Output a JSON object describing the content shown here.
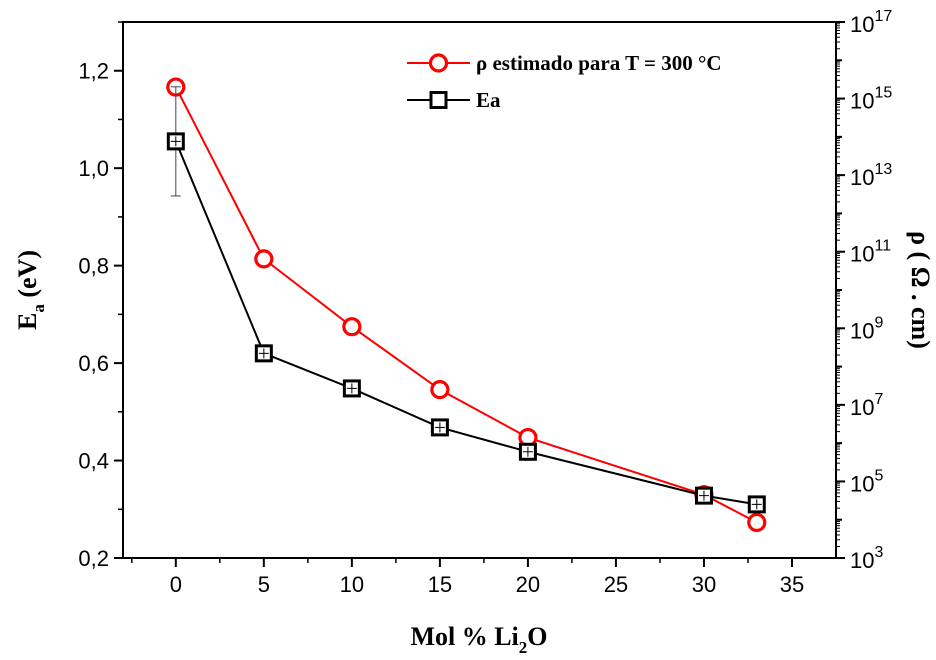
{
  "chart_data": {
    "type": "line",
    "x": [
      0,
      5,
      10,
      15,
      20,
      30,
      33
    ],
    "xlabel": {
      "main": "Mol % Li",
      "sub": "2",
      "tail": "O"
    },
    "ylabel_left": {
      "main": "E",
      "sub": "a",
      "tail": " (eV)"
    },
    "ylabel_right": "ρ ( Ω . cm)",
    "xlim": [
      -3,
      37.5
    ],
    "xticks": [
      0,
      5,
      10,
      15,
      20,
      25,
      30,
      35
    ],
    "ylim_left": [
      0.2,
      1.3
    ],
    "yticks_left": [
      "0,2",
      "0,4",
      "0,6",
      "0,8",
      "1,0",
      "1,2"
    ],
    "yticks_left_values": [
      0.2,
      0.4,
      0.6,
      0.8,
      1.0,
      1.2
    ],
    "right_axis_scale": "log",
    "ylim_right_exp": [
      3,
      17
    ],
    "yticks_right_exp": [
      "3",
      "5",
      "7",
      "9",
      "11",
      "13",
      "15",
      "17"
    ],
    "yticks_right_base": "10",
    "series": [
      {
        "name": "ρ estimado para T = 300 °C",
        "axis": "right",
        "marker": "circle",
        "color": "#ff0000",
        "values": [
          2000000000000000.0,
          65000000000.0,
          1100000000.0,
          25000000.0,
          1400000.0,
          45000.0,
          8500.0
        ]
      },
      {
        "name": "Ea",
        "axis": "left",
        "marker": "square",
        "color": "#000000",
        "values": [
          1.055,
          0.62,
          0.548,
          0.468,
          0.418,
          0.328,
          0.31
        ],
        "error": [
          0.112,
          null,
          null,
          null,
          null,
          null,
          null
        ]
      }
    ],
    "legend_position": "top-right",
    "grid": false
  }
}
